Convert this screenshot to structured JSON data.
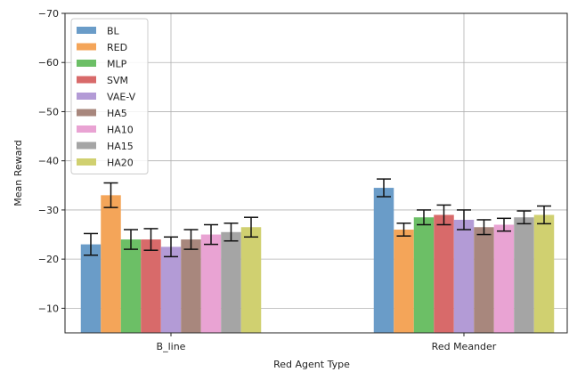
{
  "chart_data": {
    "type": "bar",
    "xlabel": "Red Agent Type",
    "ylabel": "Mean Reward",
    "ylim": [
      -5,
      -70
    ],
    "yticks": [
      -10,
      -20,
      -30,
      -40,
      -50,
      -60,
      -70
    ],
    "ytick_labels": [
      "−10",
      "−20",
      "−30",
      "−40",
      "−50",
      "−60",
      "−70"
    ],
    "categories": [
      "B_line",
      "Red Meander"
    ],
    "grid": true,
    "legend": "top-left",
    "series": [
      {
        "name": "BL",
        "color": "#6a9cc8",
        "values": [
          -23.0,
          -34.5
        ],
        "errors": [
          2.2,
          1.8
        ]
      },
      {
        "name": "RED",
        "color": "#f4a559",
        "values": [
          -33.0,
          -26.0
        ],
        "errors": [
          2.5,
          1.3
        ]
      },
      {
        "name": "MLP",
        "color": "#6cbf66",
        "values": [
          -24.0,
          -28.5
        ],
        "errors": [
          2.0,
          1.5
        ]
      },
      {
        "name": "SVM",
        "color": "#d86a6a",
        "values": [
          -24.0,
          -29.0
        ],
        "errors": [
          2.2,
          2.0
        ]
      },
      {
        "name": "VAE-V",
        "color": "#b39bd6",
        "values": [
          -22.5,
          -28.0
        ],
        "errors": [
          2.0,
          2.0
        ]
      },
      {
        "name": "HA5",
        "color": "#a8877d",
        "values": [
          -24.0,
          -26.5
        ],
        "errors": [
          2.0,
          1.5
        ]
      },
      {
        "name": "HA10",
        "color": "#e9a3d3",
        "values": [
          -25.0,
          -27.0
        ],
        "errors": [
          2.0,
          1.3
        ]
      },
      {
        "name": "HA15",
        "color": "#a5a5a5",
        "values": [
          -25.5,
          -28.5
        ],
        "errors": [
          1.8,
          1.3
        ]
      },
      {
        "name": "HA20",
        "color": "#d0d070",
        "values": [
          -26.5,
          -29.0
        ],
        "errors": [
          2.0,
          1.8
        ]
      }
    ]
  }
}
